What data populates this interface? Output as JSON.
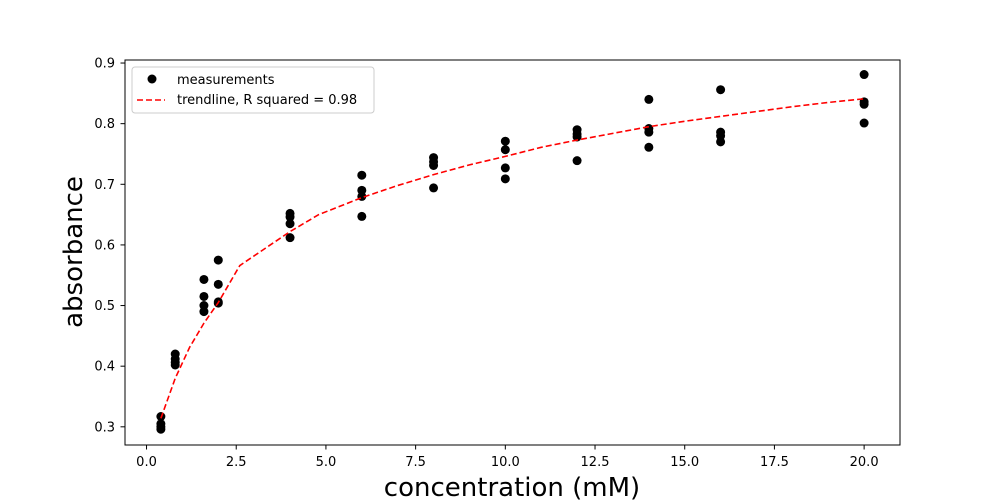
{
  "chart_data": {
    "type": "scatter",
    "title": "",
    "xlabel": "concentration (mM)",
    "ylabel": "absorbance",
    "xlim": [
      -0.6,
      21.0
    ],
    "ylim": [
      0.27,
      0.905
    ],
    "xticks": [
      0.0,
      2.5,
      5.0,
      7.5,
      10.0,
      12.5,
      15.0,
      17.5,
      20.0
    ],
    "xtick_labels": [
      "0.0",
      "2.5",
      "5.0",
      "7.5",
      "10.0",
      "12.5",
      "15.0",
      "17.5",
      "20.0"
    ],
    "yticks": [
      0.3,
      0.4,
      0.5,
      0.6,
      0.7,
      0.8,
      0.9
    ],
    "ytick_labels": [
      "0.3",
      "0.4",
      "0.5",
      "0.6",
      "0.7",
      "0.8",
      "0.9"
    ],
    "grid": false,
    "legend_position": "top-left",
    "series": [
      {
        "name": "measurements",
        "kind": "scatter",
        "color": "#000000",
        "points": [
          [
            0.4,
            0.317
          ],
          [
            0.4,
            0.305
          ],
          [
            0.4,
            0.3
          ],
          [
            0.4,
            0.296
          ],
          [
            0.8,
            0.42
          ],
          [
            0.8,
            0.412
          ],
          [
            0.8,
            0.406
          ],
          [
            0.8,
            0.402
          ],
          [
            1.6,
            0.543
          ],
          [
            1.6,
            0.515
          ],
          [
            1.6,
            0.5
          ],
          [
            1.6,
            0.49
          ],
          [
            2.0,
            0.575
          ],
          [
            2.0,
            0.535
          ],
          [
            2.0,
            0.506
          ],
          [
            2.0,
            0.504
          ],
          [
            4.0,
            0.652
          ],
          [
            4.0,
            0.646
          ],
          [
            4.0,
            0.635
          ],
          [
            4.0,
            0.612
          ],
          [
            6.0,
            0.715
          ],
          [
            6.0,
            0.69
          ],
          [
            6.0,
            0.68
          ],
          [
            6.0,
            0.647
          ],
          [
            8.0,
            0.744
          ],
          [
            8.0,
            0.737
          ],
          [
            8.0,
            0.731
          ],
          [
            8.0,
            0.694
          ],
          [
            10.0,
            0.771
          ],
          [
            10.0,
            0.757
          ],
          [
            10.0,
            0.727
          ],
          [
            10.0,
            0.709
          ],
          [
            12.0,
            0.79
          ],
          [
            12.0,
            0.783
          ],
          [
            12.0,
            0.778
          ],
          [
            12.0,
            0.739
          ],
          [
            14.0,
            0.84
          ],
          [
            14.0,
            0.792
          ],
          [
            14.0,
            0.786
          ],
          [
            14.0,
            0.761
          ],
          [
            16.0,
            0.856
          ],
          [
            16.0,
            0.786
          ],
          [
            16.0,
            0.78
          ],
          [
            16.0,
            0.77
          ],
          [
            20.0,
            0.881
          ],
          [
            20.0,
            0.836
          ],
          [
            20.0,
            0.832
          ],
          [
            20.0,
            0.801
          ]
        ]
      },
      {
        "name": "trendline, R squared = 0.98",
        "kind": "line",
        "style": "dashed",
        "color": "#ff0000",
        "points": [
          [
            0.4,
            0.314
          ],
          [
            0.8,
            0.38
          ],
          [
            1.2,
            0.431
          ],
          [
            1.6,
            0.471
          ],
          [
            2.0,
            0.505
          ],
          [
            2.6,
            0.566
          ],
          [
            4.0,
            0.622
          ],
          [
            4.8,
            0.65
          ],
          [
            6.0,
            0.678
          ],
          [
            7.0,
            0.698
          ],
          [
            8.0,
            0.716
          ],
          [
            9.0,
            0.732
          ],
          [
            10.0,
            0.746
          ],
          [
            11.0,
            0.761
          ],
          [
            12.0,
            0.773
          ],
          [
            13.0,
            0.784
          ],
          [
            14.0,
            0.795
          ],
          [
            15.0,
            0.804
          ],
          [
            16.0,
            0.812
          ],
          [
            17.0,
            0.82
          ],
          [
            18.0,
            0.828
          ],
          [
            19.0,
            0.835
          ],
          [
            20.0,
            0.841
          ]
        ]
      }
    ]
  }
}
